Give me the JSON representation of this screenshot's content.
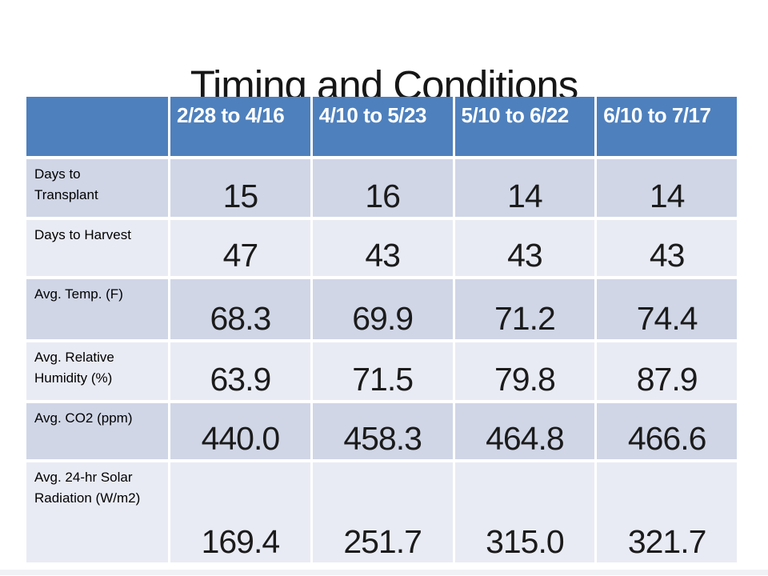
{
  "slide": {
    "title": "Timing and Conditions"
  },
  "table": {
    "corner_label": "",
    "columns": [
      "2/28 to 4/16",
      "4/10 to 5/23",
      "5/10 to 6/22",
      "6/10 to 7/17"
    ],
    "rows": [
      {
        "label": "Days to Transplant",
        "values": [
          "15",
          "16",
          "14",
          "14"
        ]
      },
      {
        "label": "Days to Harvest",
        "values": [
          "47",
          "43",
          "43",
          "43"
        ]
      },
      {
        "label": "Avg. Temp. (F)",
        "values": [
          "68.3",
          "69.9",
          "71.2",
          "74.4"
        ]
      },
      {
        "label": "Avg. Relative Humidity (%)",
        "values": [
          "63.9",
          "71.5",
          "79.8",
          "87.9"
        ]
      },
      {
        "label": "Avg. CO2 (ppm)",
        "values": [
          "440.0",
          "458.3",
          "464.8",
          "466.6"
        ]
      },
      {
        "label": "Avg. 24-hr Solar Radiation (W/m2)",
        "values": [
          "169.4",
          "251.7",
          "315.0",
          "321.7"
        ]
      }
    ],
    "colors": {
      "header_bg": "#4E80BD",
      "header_text": "#FFFFFF",
      "band_dark": "#D0D6E6",
      "band_light": "#E9EBF4",
      "body_text": "#000000"
    }
  }
}
